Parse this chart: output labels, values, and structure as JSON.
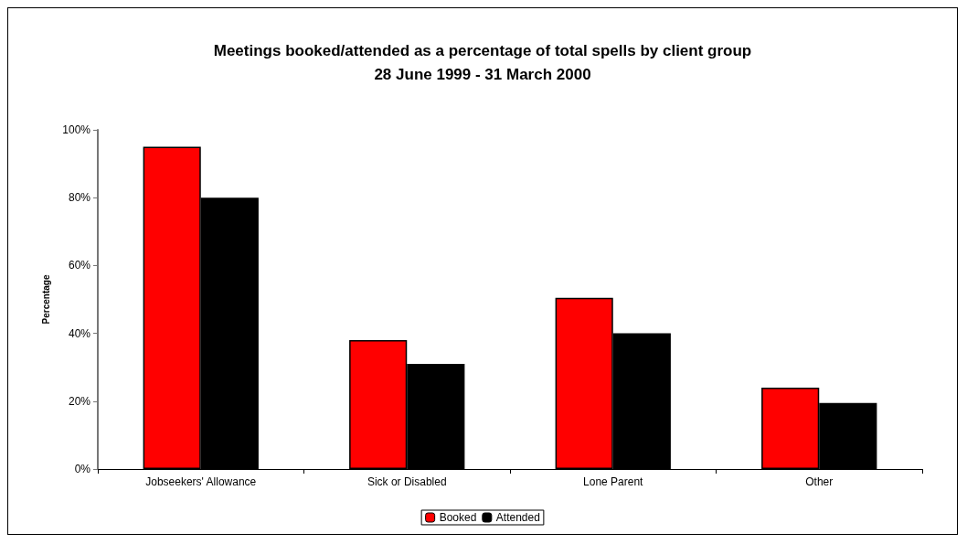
{
  "chart_data": {
    "type": "bar",
    "title": "Meetings booked/attended as a percentage of total spells by client group\n28 June 1999 - 31 March 2000",
    "ylabel": "Percentage",
    "categories": [
      "Jobseekers' Allowance",
      "Sick or Disabled",
      "Lone Parent",
      "Other"
    ],
    "series": [
      {
        "name": "Booked",
        "color": "#ff0000",
        "values": [
          95,
          38,
          50.5,
          24
        ]
      },
      {
        "name": "Attended",
        "color": "#000000",
        "values": [
          80,
          31,
          40,
          19.5
        ]
      }
    ],
    "ylim": [
      0,
      100
    ],
    "yticks": [
      {
        "value": 0,
        "label": "0%"
      },
      {
        "value": 20,
        "label": "20%"
      },
      {
        "value": 40,
        "label": "40%"
      },
      {
        "value": 60,
        "label": "60%"
      },
      {
        "value": 80,
        "label": "80%"
      },
      {
        "value": 100,
        "label": "100%"
      }
    ],
    "grid": false,
    "legend": "bottom"
  }
}
